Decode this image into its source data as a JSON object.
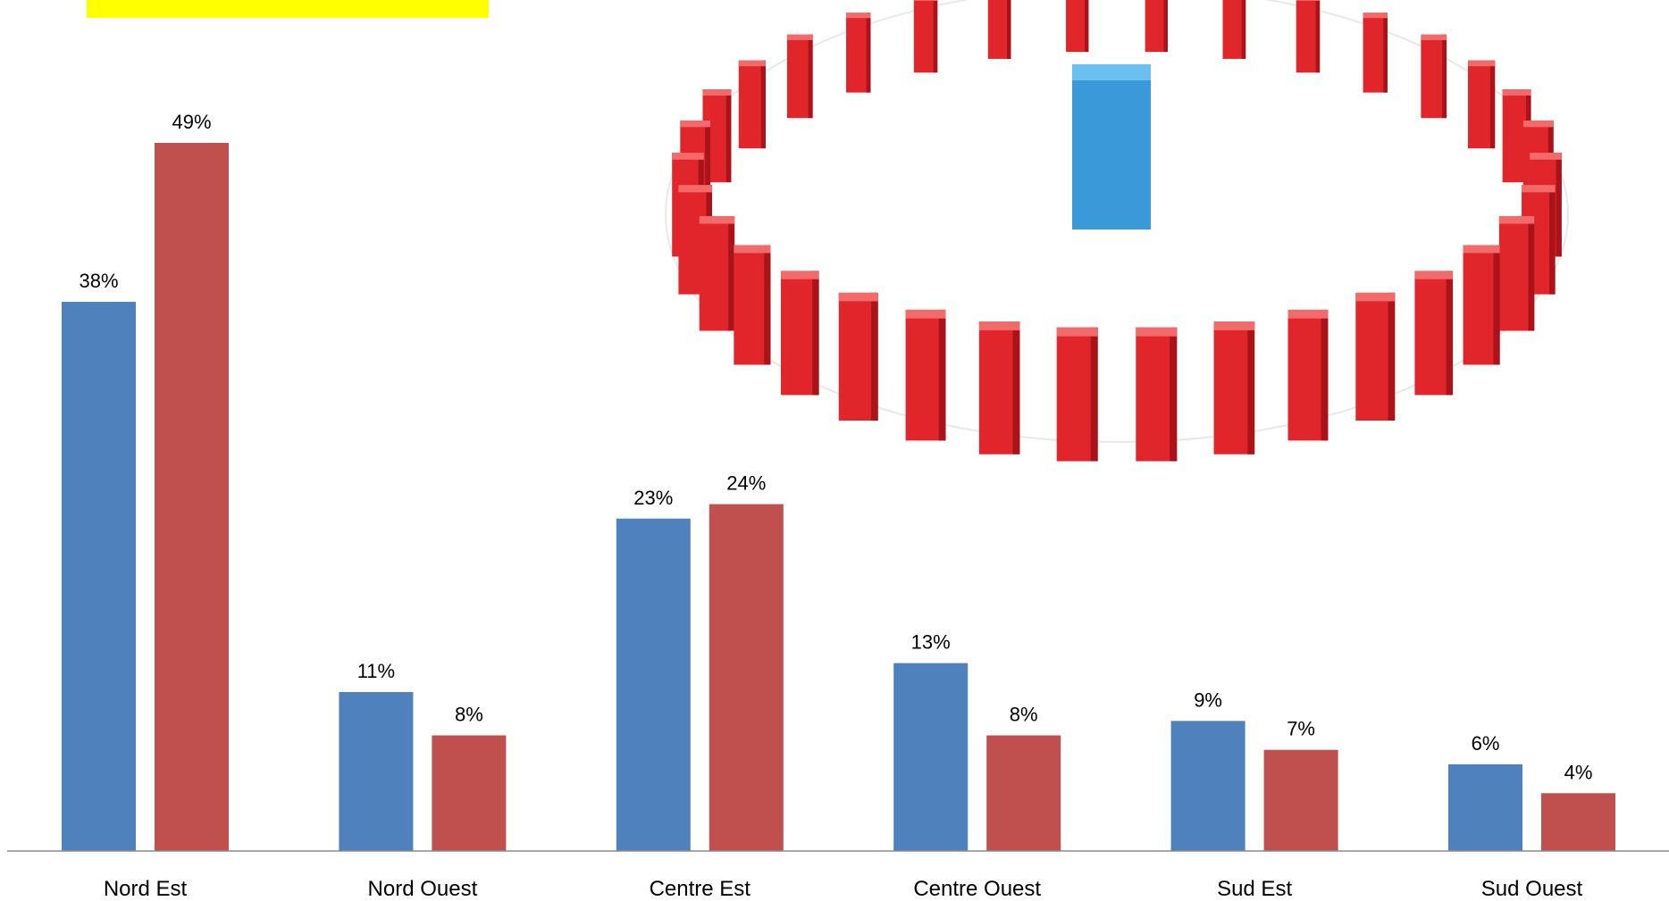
{
  "chart_data": {
    "type": "bar",
    "categories": [
      "Nord Est",
      "Nord Ouest",
      "Centre Est",
      "Centre Ouest",
      "Sud Est",
      "Sud Ouest"
    ],
    "series": [
      {
        "values": [
          38,
          11,
          23,
          13,
          9,
          6
        ],
        "labels": [
          "38%",
          "11%",
          "23%",
          "13%",
          "9%",
          "6%"
        ],
        "color": "#4f81bd"
      },
      {
        "values": [
          49,
          8,
          24,
          8,
          7,
          4
        ],
        "labels": [
          "49%",
          "8%",
          "24%",
          "8%",
          "7%",
          "4%"
        ],
        "color": "#c0504d"
      }
    ],
    "ylim": [
      0,
      49
    ],
    "grid": false,
    "legend": "none",
    "title_box_color": "#ffff00"
  }
}
